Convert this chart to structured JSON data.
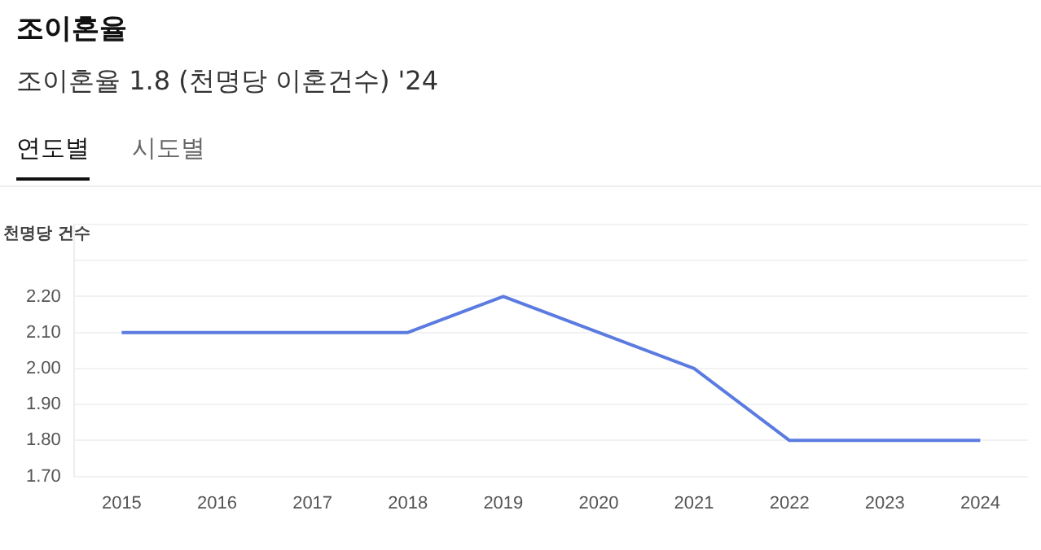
{
  "chart_data": {
    "type": "line",
    "title": "조이혼율",
    "subtitle": "조이혼율 1.8 (천명당 이혼건수) '24",
    "ylabel": "천명당 건수",
    "annotations": [
      "연도별",
      "시도별"
    ],
    "categories": [
      "2015",
      "2016",
      "2017",
      "2018",
      "2019",
      "2020",
      "2021",
      "2022",
      "2023",
      "2024"
    ],
    "series": [
      {
        "color": "#5b7be0",
        "values": [
          2.1,
          2.1,
          2.1,
          2.1,
          2.2,
          2.1,
          2.0,
          1.8,
          1.8,
          1.8
        ]
      }
    ],
    "ylim": [
      1.7,
      2.4
    ],
    "yticks": [
      {
        "value": 1.7,
        "label": "1.70"
      },
      {
        "value": 1.8,
        "label": "1.80"
      },
      {
        "value": 1.9,
        "label": "1.90"
      },
      {
        "value": 2.0,
        "label": "2.00"
      },
      {
        "value": 2.1,
        "label": "2.10"
      },
      {
        "value": 2.2,
        "label": "2.20"
      },
      {
        "value": 2.3,
        "label": null
      },
      {
        "value": 2.4,
        "label": null
      }
    ],
    "grid": "y",
    "legend": false,
    "marker": "none",
    "line_style": "solid"
  }
}
